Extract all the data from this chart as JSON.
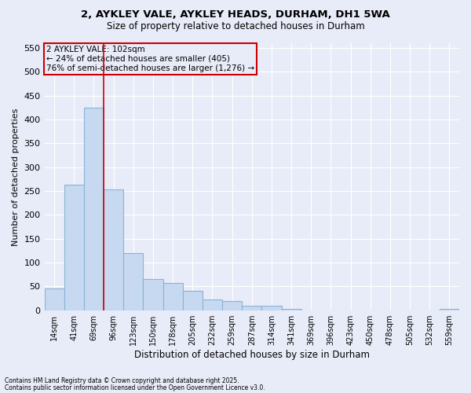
{
  "title_line1": "2, AYKLEY VALE, AYKLEY HEADS, DURHAM, DH1 5WA",
  "title_line2": "Size of property relative to detached houses in Durham",
  "xlabel": "Distribution of detached houses by size in Durham",
  "ylabel": "Number of detached properties",
  "footnote1": "Contains HM Land Registry data © Crown copyright and database right 2025.",
  "footnote2": "Contains public sector information licensed under the Open Government Licence v3.0.",
  "annotation_line1": "2 AYKLEY VALE: 102sqm",
  "annotation_line2": "← 24% of detached houses are smaller (405)",
  "annotation_line3": "76% of semi-detached houses are larger (1,276) →",
  "bar_labels": [
    "14sqm",
    "41sqm",
    "69sqm",
    "96sqm",
    "123sqm",
    "150sqm",
    "178sqm",
    "205sqm",
    "232sqm",
    "259sqm",
    "287sqm",
    "314sqm",
    "341sqm",
    "369sqm",
    "396sqm",
    "423sqm",
    "450sqm",
    "478sqm",
    "505sqm",
    "532sqm",
    "559sqm"
  ],
  "bar_values": [
    45,
    263,
    425,
    253,
    120,
    65,
    58,
    40,
    22,
    20,
    10,
    10,
    2,
    0,
    0,
    0,
    0,
    0,
    0,
    0,
    2
  ],
  "bar_color": "#c6d9f1",
  "bar_edge_color": "#8ab4d4",
  "red_line_color": "#cc0000",
  "red_line_x": 3.0,
  "ylim": [
    0,
    560
  ],
  "yticks": [
    0,
    50,
    100,
    150,
    200,
    250,
    300,
    350,
    400,
    450,
    500,
    550
  ],
  "bg_color": "#e8ecf8",
  "grid_color": "#ffffff",
  "annotation_box_color": "#cc0000"
}
